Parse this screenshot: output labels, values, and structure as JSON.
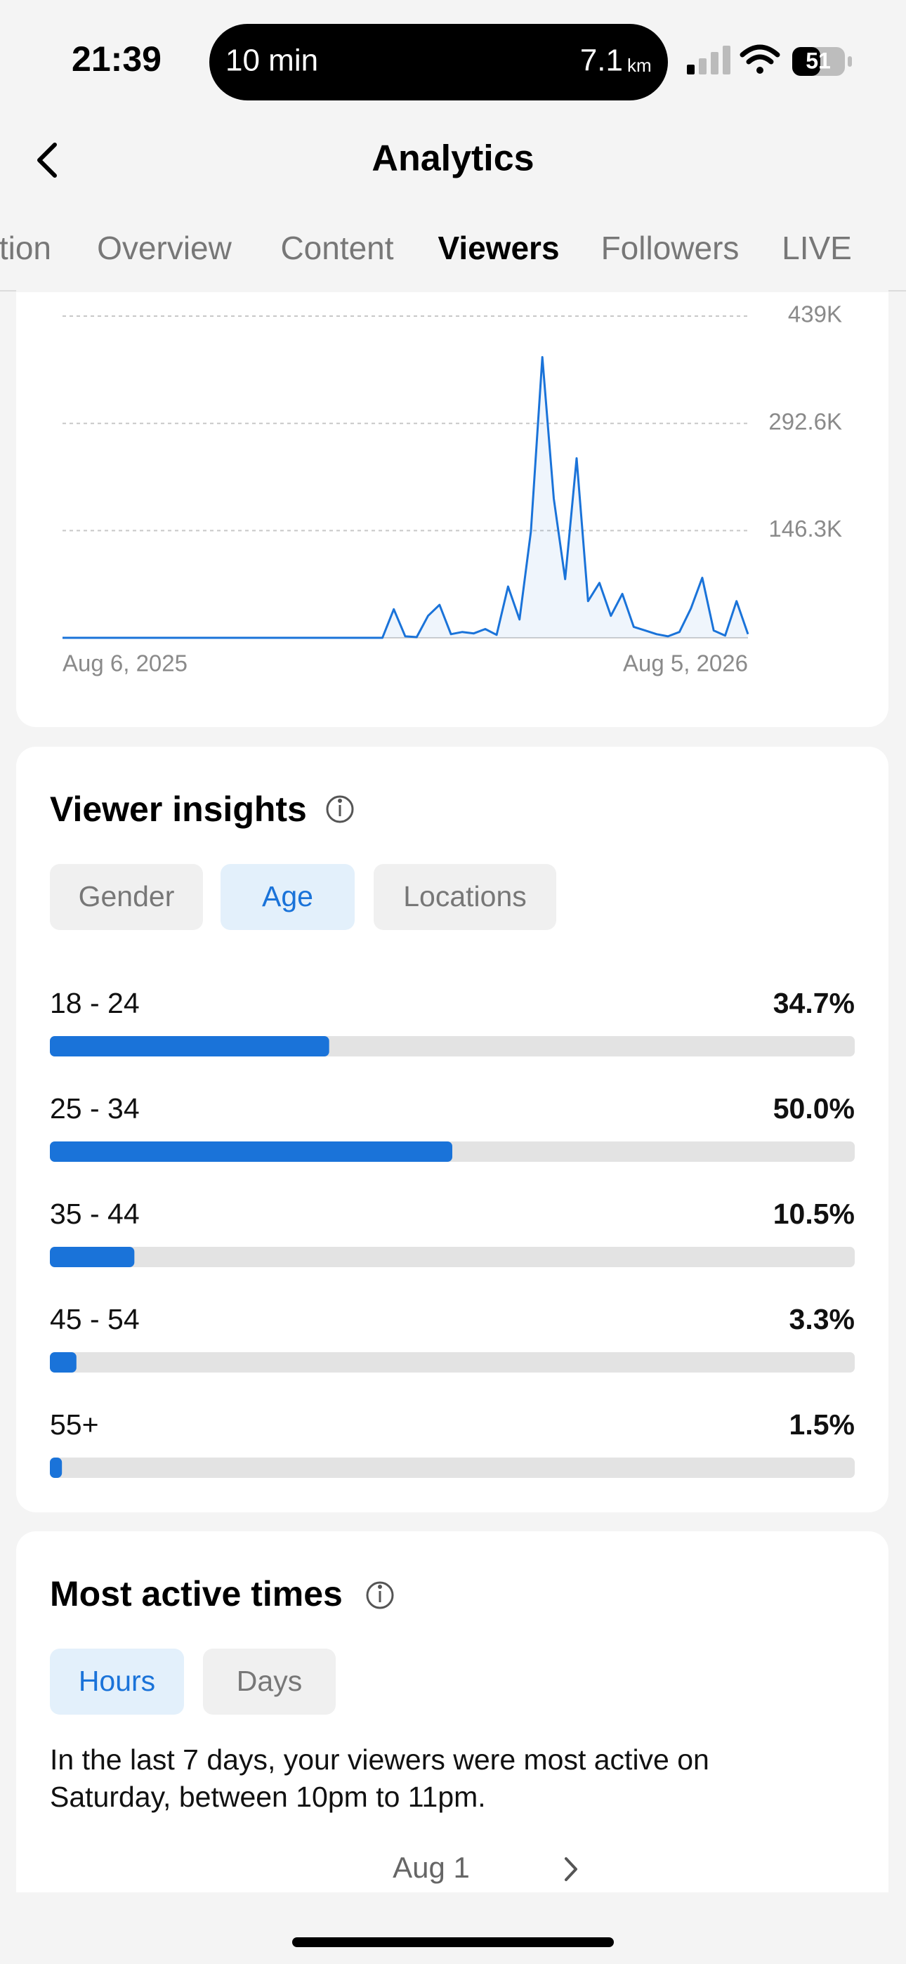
{
  "status_bar": {
    "time": "21:39",
    "activity": "10 min",
    "distance": "7.1",
    "distance_unit": "km",
    "battery": "51"
  },
  "header": {
    "title": "Analytics"
  },
  "tabs": {
    "items": [
      "tion",
      "Overview",
      "Content",
      "Viewers",
      "Followers",
      "LIVE"
    ],
    "selected": 3
  },
  "chart_data": [
    {
      "type": "line",
      "color": "#1a73d9",
      "values": [
        0,
        0,
        0,
        0,
        0,
        0,
        0,
        0,
        0,
        0,
        0,
        0,
        0,
        0,
        0,
        0,
        0,
        0,
        0,
        0,
        0,
        0,
        0,
        0,
        0,
        0,
        0,
        0,
        0,
        39000,
        2000,
        1000,
        30000,
        45000,
        5000,
        8000,
        6000,
        12000,
        4000,
        70000,
        25000,
        145000,
        383000,
        190000,
        80000,
        245000,
        50000,
        75000,
        30000,
        60000,
        15000,
        10000,
        5000,
        2000,
        8000,
        40000,
        82000,
        10000,
        3000,
        50000,
        5000
      ],
      "x_labels": [
        "Aug 6, 2025",
        "Aug 5, 2026"
      ],
      "ylim": [
        0,
        439000
      ],
      "yticks": [
        {
          "value": 146300,
          "label": "146.3K"
        },
        {
          "value": 292600,
          "label": "292.6K"
        },
        {
          "value": 439000,
          "label": "439K"
        }
      ],
      "grid": true
    },
    {
      "type": "bar",
      "orientation": "horizontal",
      "title": "Viewer insights",
      "categories": [
        "18 - 24",
        "25 - 34",
        "35 - 44",
        "45 - 54",
        "55+"
      ],
      "values": [
        34.7,
        50.0,
        10.5,
        3.3,
        1.5
      ],
      "value_labels": [
        "34.7%",
        "50.0%",
        "10.5%",
        "3.3%",
        "1.5%"
      ],
      "color": "#1a73d9",
      "xlim": [
        0,
        100
      ]
    }
  ],
  "viewer_tabs": {
    "items": [
      "Gender",
      "Age",
      "Locations"
    ],
    "selected": 1
  },
  "most_active": {
    "title": "Most active times",
    "items": [
      "Hours",
      "Days"
    ],
    "selected": 0,
    "text": [
      "In the last 7 days, your viewers were most active on",
      "Saturday, between 10pm to 11pm."
    ],
    "date": "Aug 1"
  }
}
